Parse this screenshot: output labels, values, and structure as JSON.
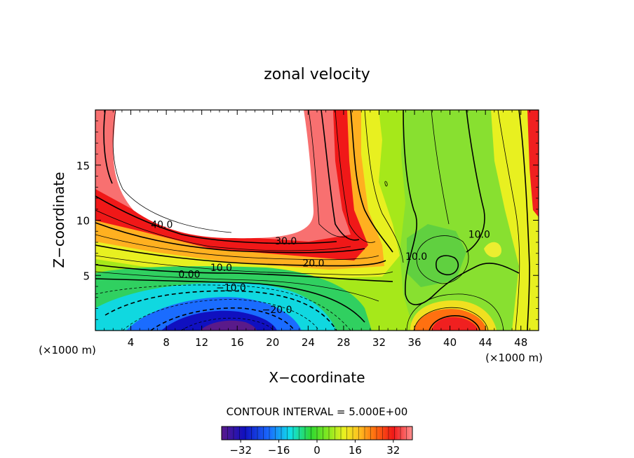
{
  "chart_data": {
    "type": "contour",
    "title": "zonal velocity",
    "xlabel": "X−coordinate",
    "ylabel": "Z−coordinate",
    "x_unit_left": "(×1000 m)",
    "x_unit_right": "(×1000 m)",
    "xlim": [
      0,
      50
    ],
    "ylim": [
      0,
      20
    ],
    "xticks": [
      {
        "value": 4,
        "label": "4"
      },
      {
        "value": 8,
        "label": "8"
      },
      {
        "value": 12,
        "label": "12"
      },
      {
        "value": 16,
        "label": "16"
      },
      {
        "value": 20,
        "label": "20"
      },
      {
        "value": 24,
        "label": "24"
      },
      {
        "value": 28,
        "label": "28"
      },
      {
        "value": 32,
        "label": "32"
      },
      {
        "value": 36,
        "label": "36"
      },
      {
        "value": 40,
        "label": "40"
      },
      {
        "value": 44,
        "label": "44"
      },
      {
        "value": 48,
        "label": "48"
      }
    ],
    "yticks": [
      {
        "value": 5,
        "label": "5"
      },
      {
        "value": 10,
        "label": "10"
      },
      {
        "value": 15,
        "label": "15"
      }
    ],
    "contour_labels": [
      {
        "text": "40.0",
        "x": 7.5,
        "y": 9.3
      },
      {
        "text": "30.0",
        "x": 21.5,
        "y": 7.8
      },
      {
        "text": "20.0",
        "x": 24.6,
        "y": 5.8
      },
      {
        "text": "10.0",
        "x": 14.2,
        "y": 5.4
      },
      {
        "text": "0.00",
        "x": 10.6,
        "y": 4.8
      },
      {
        "text": "−10.0",
        "x": 15.3,
        "y": 3.6
      },
      {
        "text": "−20.0",
        "x": 20.5,
        "y": 1.6
      },
      {
        "text": "10.0",
        "x": 36.2,
        "y": 6.4
      },
      {
        "text": "10.0",
        "x": 43.3,
        "y": 8.4
      }
    ],
    "contour_interval_text": "CONTOUR INTERVAL = 5.000E+00",
    "colorbar": {
      "range": [
        -40,
        40
      ],
      "ticks": [
        {
          "value": -32,
          "label": "−32"
        },
        {
          "value": -16,
          "label": "−16"
        },
        {
          "value": 0,
          "label": "0"
        },
        {
          "value": 16,
          "label": "16"
        },
        {
          "value": 32,
          "label": "32"
        }
      ]
    },
    "grid": false
  }
}
